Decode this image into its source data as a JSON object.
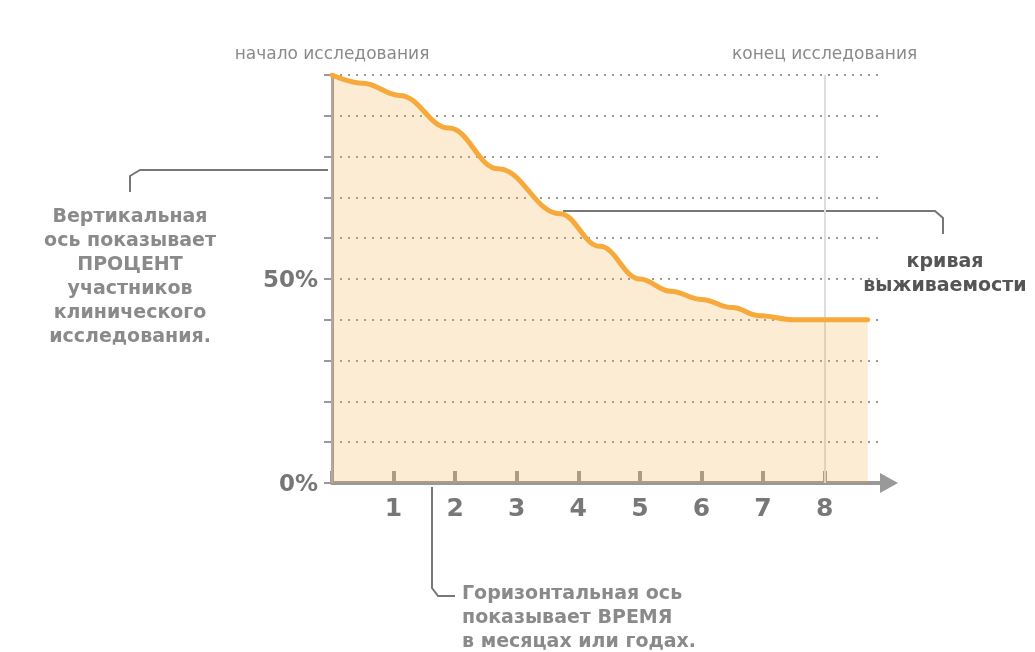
{
  "chart_data": {
    "type": "area",
    "x": [
      0,
      0.5,
      1.1,
      1.9,
      2.7,
      3.7,
      4.35,
      5,
      5.5,
      6,
      6.5,
      6.95,
      7.5,
      8,
      8.7
    ],
    "series": [
      {
        "color": "#f7aa3c",
        "values": [
          100,
          98,
          95,
          87,
          77,
          66,
          58,
          50,
          47,
          45,
          43,
          41,
          40,
          40,
          40
        ]
      }
    ],
    "xlim": [
      0,
      8.9
    ],
    "xticks": [
      {
        "value": 0,
        "label": null
      },
      1,
      2,
      3,
      4,
      5,
      6,
      7,
      8
    ],
    "ylim": [
      0,
      100
    ],
    "yticks": [
      {
        "value": 0,
        "label": "0%"
      },
      {
        "value": 10,
        "label": null
      },
      {
        "value": 20,
        "label": null
      },
      {
        "value": 30,
        "label": null
      },
      {
        "value": 40,
        "label": null
      },
      {
        "value": 50,
        "label": "50%"
      },
      {
        "value": 60,
        "label": null
      },
      {
        "value": 70,
        "label": null
      },
      {
        "value": 80,
        "label": null
      },
      {
        "value": 90,
        "label": null
      },
      {
        "value": 100,
        "label": null
      }
    ],
    "grid": "y",
    "ref_lines": [
      {
        "axis": "x",
        "value": 0,
        "label": "начало исследования",
        "color": "#aaaaaa"
      },
      {
        "axis": "x",
        "value": 8,
        "label": "конец исследования",
        "color": "#dddddd"
      }
    ],
    "annotations": [
      "Вертикальная\nось показывает\nПРОЦЕНТ\nучастников\nклинического\nисследования.",
      "Горизонтальная ось\nпоказывает ВРЕМЯ\nв месяцах или годах.",
      "кривая\nвыживаемости"
    ]
  }
}
